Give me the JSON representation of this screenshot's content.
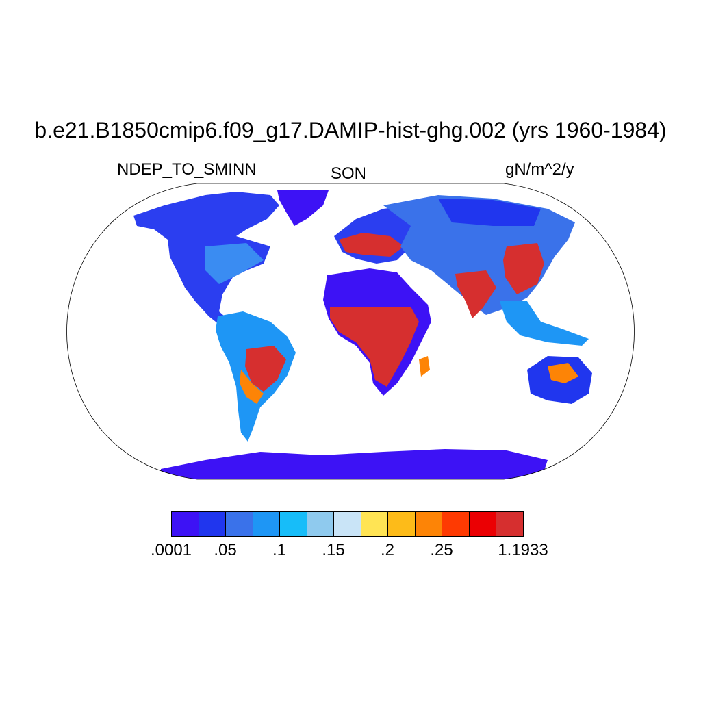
{
  "title": "b.e21.B1850cmip6.f09_g17.DAMIP-hist-ghg.002 (yrs 1960-1984)",
  "variable": "NDEP_TO_SMINN",
  "season": "SON",
  "units": "gN/m^2/y",
  "colorbar": {
    "colors": [
      "#3d12f5",
      "#2036ee",
      "#3a72ea",
      "#1e96f5",
      "#17bdf9",
      "#8fcaee",
      "#c9e4f7",
      "#ffe454",
      "#fdbb19",
      "#fd8406",
      "#fe3a02",
      "#eb0003",
      "#d62f2f"
    ],
    "tick_labels": [
      ".0001",
      ".05",
      ".1",
      ".15",
      ".2",
      ".25",
      "1.1933"
    ]
  }
}
